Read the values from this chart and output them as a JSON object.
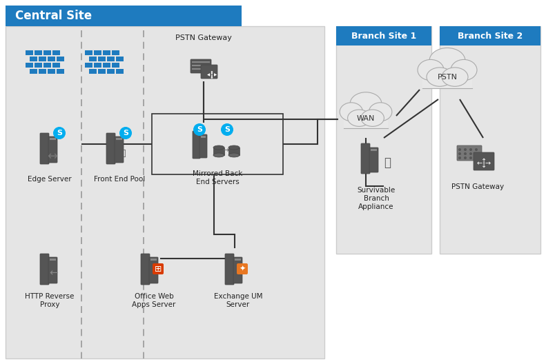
{
  "title": "Central Site",
  "header_color": "#1e7bbf",
  "header_text_color": "#ffffff",
  "bg_color": "#e5e5e5",
  "white": "#ffffff",
  "icon_dark": "#555555",
  "icon_mid": "#666666",
  "icon_light": "#888888",
  "line_color": "#333333",
  "skype_color": "#00adef",
  "office_color": "#d83b01",
  "exchange_color": "#e87722",
  "cloud_fill": "#e8e8e8",
  "cloud_edge": "#aaaaaa",
  "branch1_label": "Branch Site 1",
  "branch2_label": "Branch Site 2",
  "wan_label": "WAN",
  "pstn_label": "PSTN",
  "pstn_gw_label": "PSTN Gateway",
  "edge_label": "Edge Server",
  "frontend_label": "Front End Pool",
  "mirrored_label": "Mirrored Back\nEnd Servers",
  "http_label": "HTTP Reverse\nProxy",
  "owa_label": "Office Web\nApps Server",
  "exchange_label": "Exchange UM\nServer",
  "survivable_label": "Survivable\nBranch\nAppliance",
  "branch2_gw_label": "PSTN Gateway",
  "figw": 7.91,
  "figh": 5.28,
  "dpi": 100
}
